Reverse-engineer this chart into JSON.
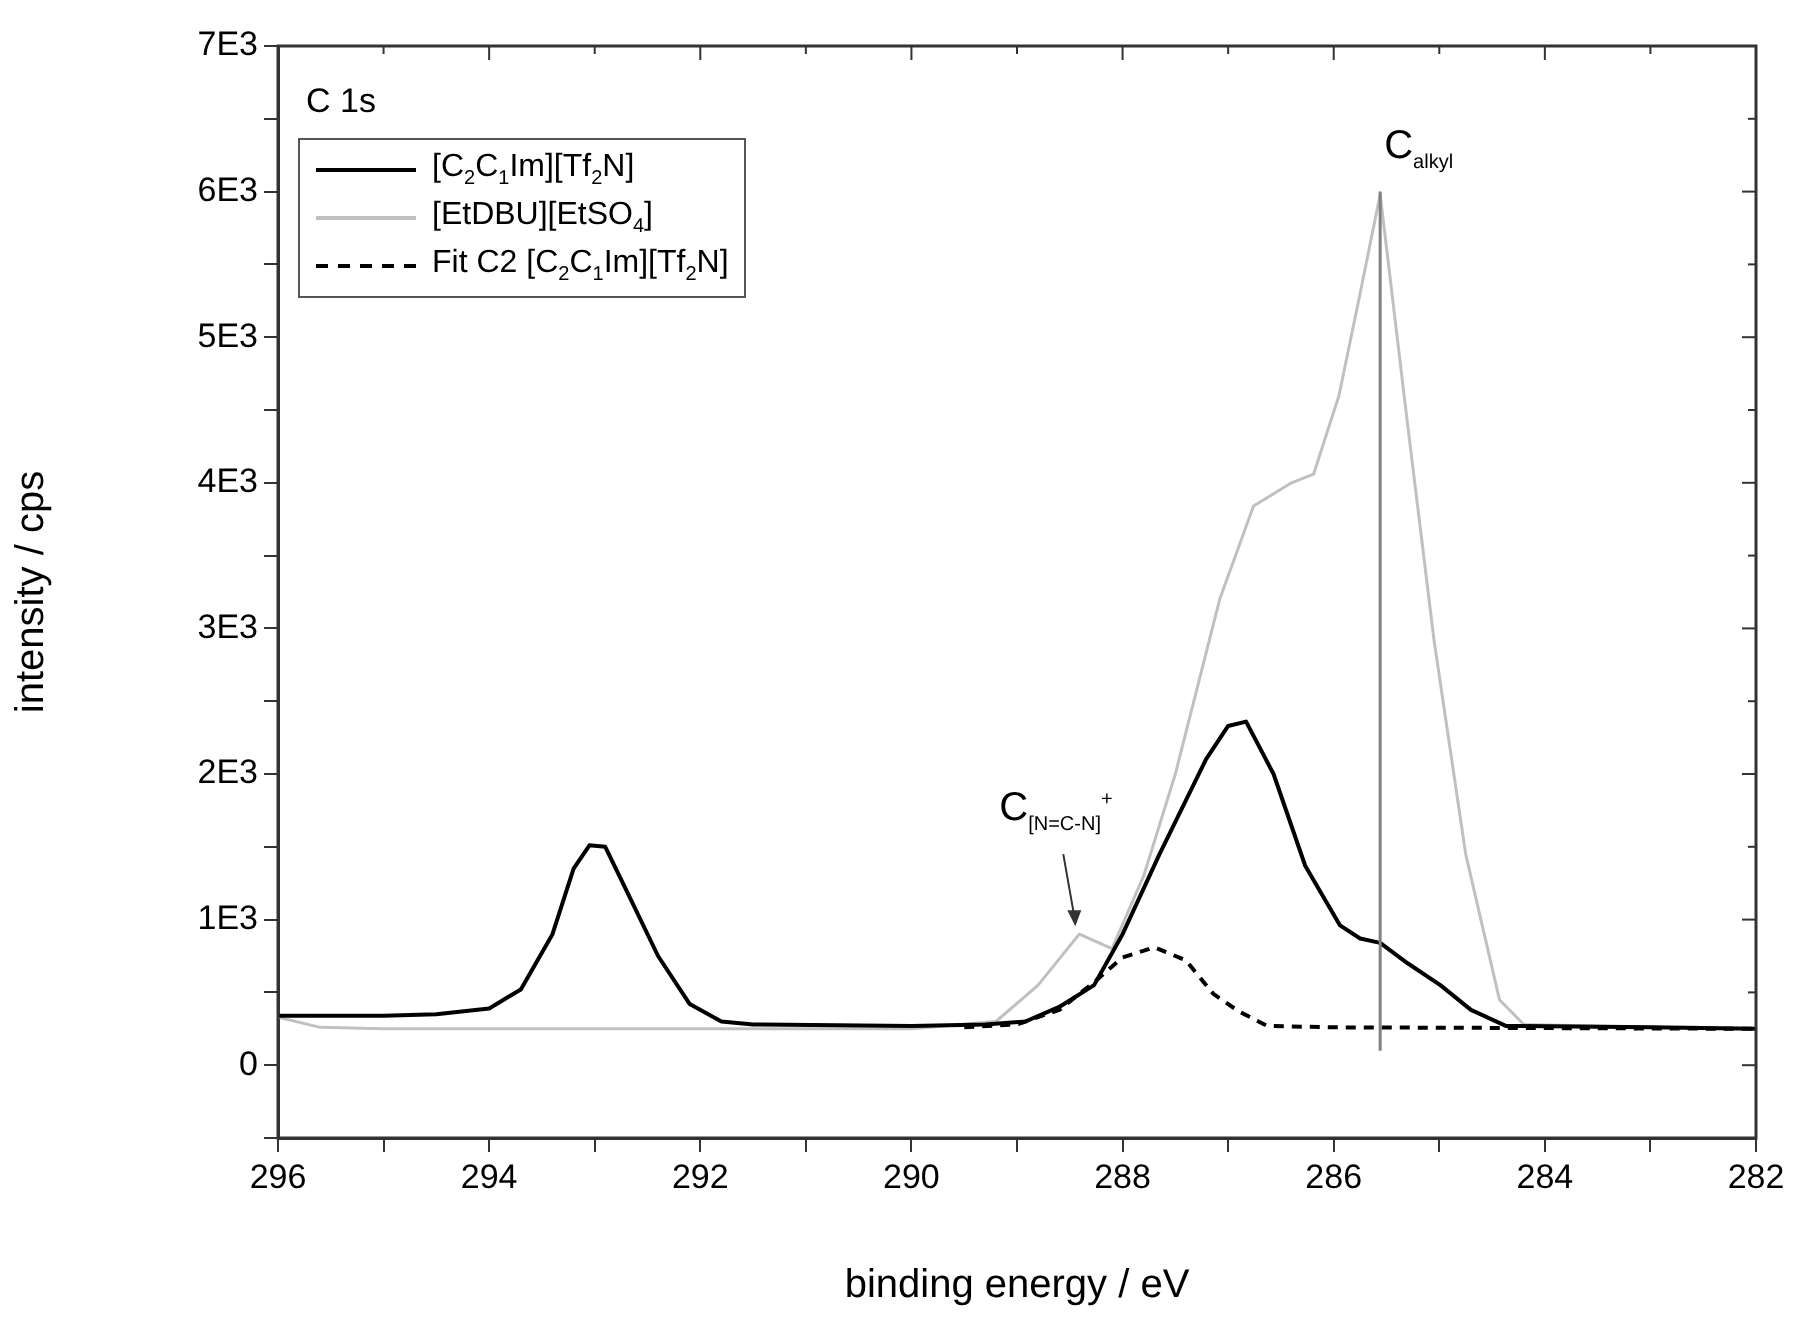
{
  "chart_data": {
    "type": "line",
    "title": "C 1s",
    "xlabel": "binding energy / eV",
    "ylabel": "intensity / cps",
    "xlim": [
      296,
      282
    ],
    "xticks": [
      296,
      {
        "value": 295,
        "label": null
      },
      294,
      {
        "value": 293,
        "label": null
      },
      292,
      {
        "value": 291,
        "label": null
      },
      290,
      {
        "value": 289,
        "label": null
      },
      288,
      {
        "value": 287,
        "label": null
      },
      286,
      {
        "value": 285,
        "label": null
      },
      284,
      {
        "value": 283,
        "label": null
      },
      282
    ],
    "ylim": [
      -500,
      7000
    ],
    "yticks": [
      {
        "value": -500,
        "label": null
      },
      0,
      {
        "value": 500,
        "label": null
      },
      {
        "value": 1000,
        "label": "1E3"
      },
      {
        "value": 1500,
        "label": null
      },
      {
        "value": 2000,
        "label": "2E3"
      },
      {
        "value": 2500,
        "label": null
      },
      {
        "value": 3000,
        "label": "3E3"
      },
      {
        "value": 3500,
        "label": null
      },
      {
        "value": 4000,
        "label": "4E3"
      },
      {
        "value": 4500,
        "label": null
      },
      {
        "value": 5000,
        "label": "5E3"
      },
      {
        "value": 5500,
        "label": null
      },
      {
        "value": 6000,
        "label": "6E3"
      },
      {
        "value": 6500,
        "label": null
      },
      {
        "value": 7000,
        "label": "7E3"
      }
    ],
    "grid": false,
    "legend": "top left",
    "marker": "none",
    "series": [
      {
        "name": "[C$_{2}$C$_{1}$Im][Tf$_{2}$N]",
        "color": "#000000",
        "line_style": "solid",
        "x": [
          296,
          295.5,
          295,
          294.5,
          294,
          293.7,
          293.4,
          293.2,
          293.05,
          292.9,
          292.7,
          292.4,
          292.1,
          291.8,
          291.5,
          290,
          289.3,
          288.92,
          288.6,
          288.27,
          288,
          287.65,
          287.21,
          287,
          286.83,
          286.57,
          286.27,
          285.94,
          285.75,
          285.56,
          285.3,
          284.99,
          284.7,
          284.37,
          283,
          282
        ],
        "values": [
          340,
          340,
          340,
          350,
          390,
          520,
          900,
          1350,
          1510,
          1500,
          1200,
          750,
          420,
          300,
          280,
          270,
          280,
          300,
          400,
          550,
          900,
          1450,
          2100,
          2330,
          2360,
          2000,
          1370,
          960,
          870,
          840,
          700,
          550,
          380,
          270,
          260,
          250
        ]
      },
      {
        "name": "[EtDBU][EtSO$_{4}$]",
        "color": "#c0c0c0",
        "line_style": "solid",
        "x": [
          296,
          295.6,
          295,
          290,
          289.2,
          288.8,
          288.41,
          288.1,
          287.8,
          287.5,
          287.08,
          286.76,
          286.4,
          286.19,
          285.95,
          285.75,
          285.56,
          285.3,
          285.05,
          284.75,
          284.43,
          284.2,
          283,
          282
        ],
        "values": [
          330,
          260,
          250,
          250,
          300,
          550,
          900,
          800,
          1300,
          2000,
          3200,
          3840,
          4000,
          4060,
          4600,
          5300,
          5980,
          4400,
          2920,
          1450,
          450,
          280,
          260,
          250
        ]
      },
      {
        "name": "Fit C2 [C$_{2}$C$_{1}$Im][Tf$_{2}$N]",
        "color": "#000000",
        "line_style": "dashed",
        "x": [
          289.5,
          289,
          288.6,
          288.27,
          288,
          287.7,
          287.4,
          287.14,
          286.9,
          286.63,
          286,
          282
        ],
        "values": [
          260,
          280,
          380,
          570,
          740,
          810,
          720,
          490,
          370,
          270,
          260,
          250
        ]
      }
    ],
    "ref_lines": [
      {
        "axis": "x",
        "value": 285.56,
        "label": "C$_{alkyl}$",
        "color": "#808080"
      }
    ],
    "annotations": [
      {
        "text": "C$_{[N=C-N]}$$^{+}$",
        "x": 288.41,
        "y": 900
      }
    ]
  }
}
